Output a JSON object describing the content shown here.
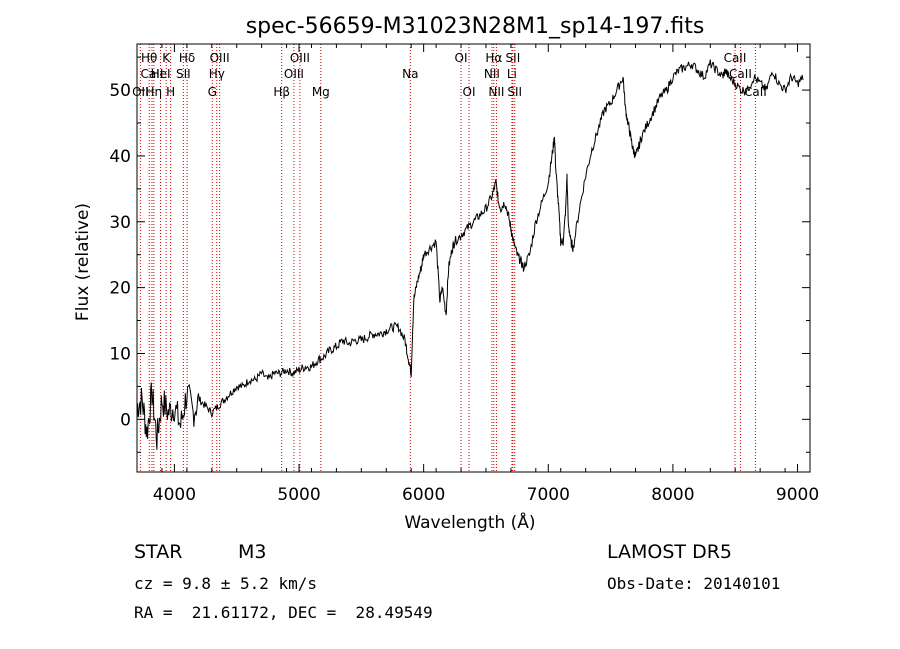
{
  "chart_data": {
    "type": "line",
    "title": "spec-56659-M31023N28M1_sp14-197.fits",
    "xlabel": "Wavelength (Å)",
    "ylabel": "Flux (relative)",
    "xlim": [
      3700,
      9100
    ],
    "ylim": [
      -8,
      57
    ],
    "xticks": [
      4000,
      5000,
      6000,
      7000,
      8000,
      9000
    ],
    "yticks": [
      0,
      10,
      20,
      30,
      40,
      50
    ],
    "grid": false,
    "line_color": "#000000",
    "marker_color": "#cc0000",
    "series": [
      {
        "wavelength": [
          3700,
          3740,
          3780,
          3820,
          3860,
          3900,
          3950,
          4000,
          4050,
          4100,
          4150,
          4200,
          4250,
          4300,
          4350,
          4400,
          4450,
          4500,
          4550,
          4600,
          4650,
          4700,
          4750,
          4800,
          4850,
          4900,
          4950,
          5000,
          5050,
          5100,
          5150,
          5200,
          5250,
          5300,
          5350,
          5400,
          5450,
          5500,
          5550,
          5600,
          5650,
          5700,
          5750,
          5800,
          5850,
          5880,
          5900,
          5920,
          5950,
          5980,
          6000,
          6050,
          6100,
          6130,
          6150,
          6180,
          6200,
          6230,
          6250,
          6300,
          6350,
          6400,
          6450,
          6500,
          6550,
          6580,
          6600,
          6620,
          6650,
          6680,
          6700,
          6720,
          6750,
          6780,
          6800,
          6850,
          6900,
          6950,
          7000,
          7030,
          7050,
          7060,
          7080,
          7100,
          7120,
          7140,
          7150,
          7160,
          7180,
          7200,
          7250,
          7300,
          7350,
          7400,
          7450,
          7500,
          7550,
          7600,
          7620,
          7640,
          7660,
          7680,
          7700,
          7720,
          7750,
          7800,
          7850,
          7900,
          7950,
          8000,
          8050,
          8100,
          8150,
          8200,
          8250,
          8300,
          8350,
          8400,
          8420,
          8450,
          8500,
          8550,
          8600,
          8650,
          8700,
          8750,
          8800,
          8850,
          8900,
          8950,
          9000,
          9050
        ],
        "flux": [
          2,
          3,
          -2,
          4,
          -3,
          3,
          1,
          2,
          -1,
          4,
          1,
          3,
          2,
          1,
          2,
          3,
          4,
          5,
          5,
          6,
          6,
          7,
          6,
          7,
          7,
          7.5,
          7,
          7.5,
          8,
          8,
          9,
          9.5,
          10.5,
          11,
          12,
          11.5,
          12,
          12,
          12.5,
          13,
          13,
          13.5,
          14,
          14,
          12,
          9,
          7,
          18,
          21,
          23,
          25,
          26,
          27,
          18,
          20,
          16,
          23,
          26,
          27,
          28,
          29,
          30,
          31,
          32,
          34,
          36,
          33,
          32,
          33,
          31,
          29,
          27,
          25,
          24,
          23,
          25,
          30,
          33,
          36,
          40,
          43,
          38,
          33,
          27,
          27,
          32,
          37,
          30,
          27,
          26,
          32,
          37,
          41,
          44,
          47,
          48,
          50,
          52,
          47,
          45,
          43,
          41,
          40,
          41,
          43,
          45,
          47,
          49,
          50,
          52,
          53,
          53.5,
          54,
          53,
          52,
          54,
          53,
          52,
          53,
          52,
          51,
          50,
          50,
          52,
          51,
          50,
          53,
          51,
          50,
          52,
          51,
          52,
          51,
          51
        ]
      }
    ],
    "lines": [
      {
        "name": "Hθ",
        "wavelength": 3798,
        "row": 1
      },
      {
        "name": "CaII",
        "wavelength": 3820,
        "row": 2
      },
      {
        "name": "OII",
        "wavelength": 3727,
        "row": 3
      },
      {
        "name": "K",
        "wavelength": 3934,
        "row": 1
      },
      {
        "name": "HeI",
        "wavelength": 3889,
        "row": 2
      },
      {
        "name": "Hη",
        "wavelength": 3835,
        "row": 3
      },
      {
        "name": "Hδ",
        "wavelength": 4102,
        "row": 1
      },
      {
        "name": "SII",
        "wavelength": 4072,
        "row": 2
      },
      {
        "name": "H",
        "wavelength": 3970,
        "row": 3
      },
      {
        "name": "OIII",
        "wavelength": 4363,
        "row": 1
      },
      {
        "name": "Hγ",
        "wavelength": 4340,
        "row": 2
      },
      {
        "name": "G",
        "wavelength": 4304,
        "row": 3
      },
      {
        "name": "OIII",
        "wavelength": 5007,
        "row": 1
      },
      {
        "name": "OIII",
        "wavelength": 4959,
        "row": 2
      },
      {
        "name": "Hβ",
        "wavelength": 4861,
        "row": 3
      },
      {
        "name": "Mg",
        "wavelength": 5175,
        "row": 3
      },
      {
        "name": "Na",
        "wavelength": 5893,
        "row": 2
      },
      {
        "name": "OI",
        "wavelength": 6300,
        "row": 1
      },
      {
        "name": "OI",
        "wavelength": 6364,
        "row": 3
      },
      {
        "name": "Hα",
        "wavelength": 6563,
        "row": 1
      },
      {
        "name": "NII",
        "wavelength": 6548,
        "row": 2
      },
      {
        "name": "NII",
        "wavelength": 6584,
        "row": 3
      },
      {
        "name": "SII",
        "wavelength": 6716,
        "row": 1
      },
      {
        "name": "Li",
        "wavelength": 6708,
        "row": 2
      },
      {
        "name": "SII",
        "wavelength": 6731,
        "row": 3
      },
      {
        "name": "CaII",
        "wavelength": 8498,
        "row": 1
      },
      {
        "name": "CaII",
        "wavelength": 8542,
        "row": 2
      },
      {
        "name": "CaII",
        "wavelength": 8662,
        "row": 3
      }
    ]
  },
  "info": {
    "class": "STAR",
    "subclass": "M3",
    "survey": "LAMOST DR5",
    "cz": "cz = 9.8 ± 5.2 km/s",
    "obsdate": "Obs-Date: 20140101",
    "radec": "RA =  21.61172, DEC =  28.49549"
  }
}
